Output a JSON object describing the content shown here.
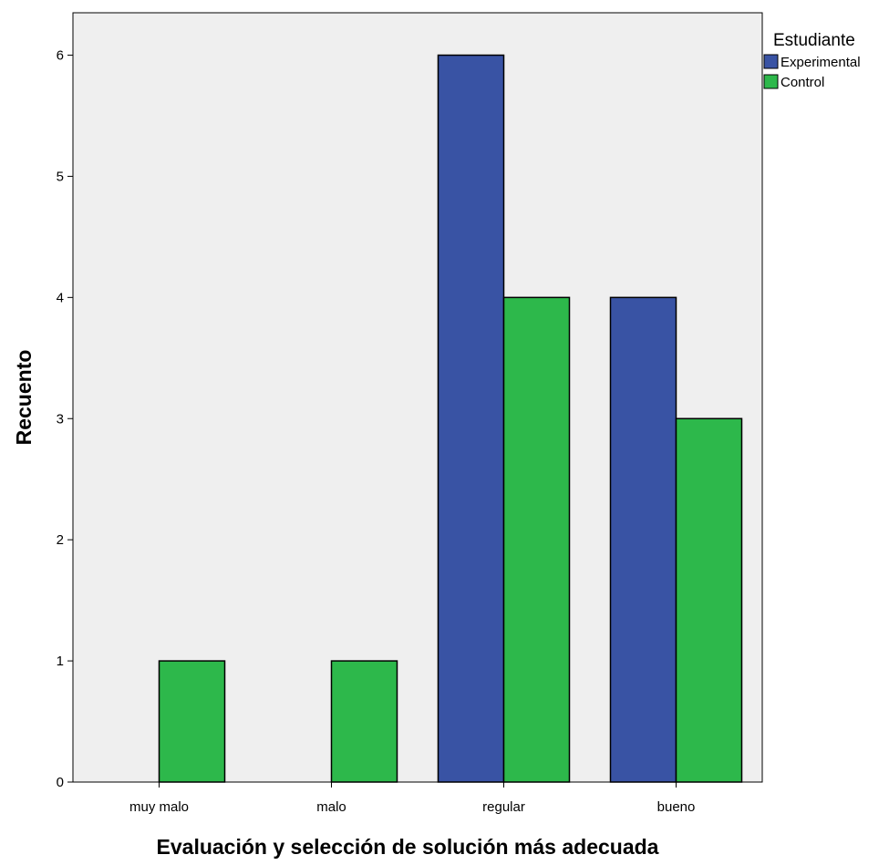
{
  "chart_data": {
    "type": "bar",
    "xlabel": "Evaluación y selección de solución más adecuada",
    "ylabel": "Recuento",
    "categories": [
      "muy malo",
      "malo",
      "regular",
      "bueno"
    ],
    "series": [
      {
        "name": "Experimental",
        "color": "#3953a4",
        "values": [
          0,
          0,
          6,
          4
        ]
      },
      {
        "name": "Control",
        "color": "#2db84b",
        "values": [
          1,
          1,
          4,
          3
        ]
      }
    ],
    "ylim": [
      0,
      6.35
    ],
    "yticks": [
      "0",
      "1",
      "2",
      "3",
      "4",
      "5",
      "6"
    ],
    "grid": false,
    "legend": {
      "title": "Estudiante",
      "position": "top-right"
    },
    "plot_background": "#efefef"
  }
}
